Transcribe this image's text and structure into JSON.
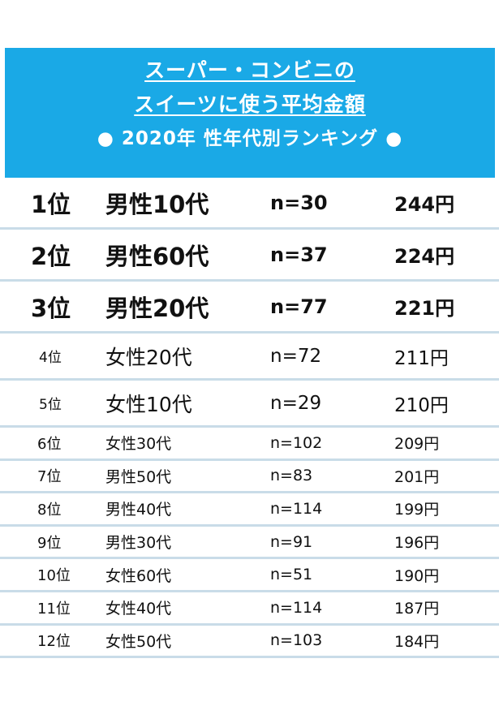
{
  "header": {
    "line1": "スーパー・コンビニの",
    "line2": "スイーツに使う平均金額",
    "line3": "● 2020年 性年代別ランキング ●"
  },
  "rows": [
    {
      "rank": "1位",
      "group": "男性10代",
      "n": "n=30",
      "amount": "244円"
    },
    {
      "rank": "2位",
      "group": "男性60代",
      "n": "n=37",
      "amount": "224円"
    },
    {
      "rank": "3位",
      "group": "男性20代",
      "n": "n=77",
      "amount": "221円"
    },
    {
      "rank": "4位",
      "group": "女性20代",
      "n": "n=72",
      "amount": "211円"
    },
    {
      "rank": "5位",
      "group": "女性10代",
      "n": "n=29",
      "amount": "210円"
    },
    {
      "rank": "6位",
      "group": "女性30代",
      "n": "n=102",
      "amount": "209円"
    },
    {
      "rank": "7位",
      "group": "男性50代",
      "n": "n=83",
      "amount": "201円"
    },
    {
      "rank": "8位",
      "group": "男性40代",
      "n": "n=114",
      "amount": "199円"
    },
    {
      "rank": "9位",
      "group": "男性30代",
      "n": "n=91",
      "amount": "196円"
    },
    {
      "rank": "10位",
      "group": "女性60代",
      "n": "n=51",
      "amount": "190円"
    },
    {
      "rank": "11位",
      "group": "女性40代",
      "n": "n=114",
      "amount": "187円"
    },
    {
      "rank": "12位",
      "group": "女性50代",
      "n": "n=103",
      "amount": "184円"
    }
  ],
  "colors": {
    "header_bg": "#1aa9e6",
    "divider": "#c9dce8"
  }
}
